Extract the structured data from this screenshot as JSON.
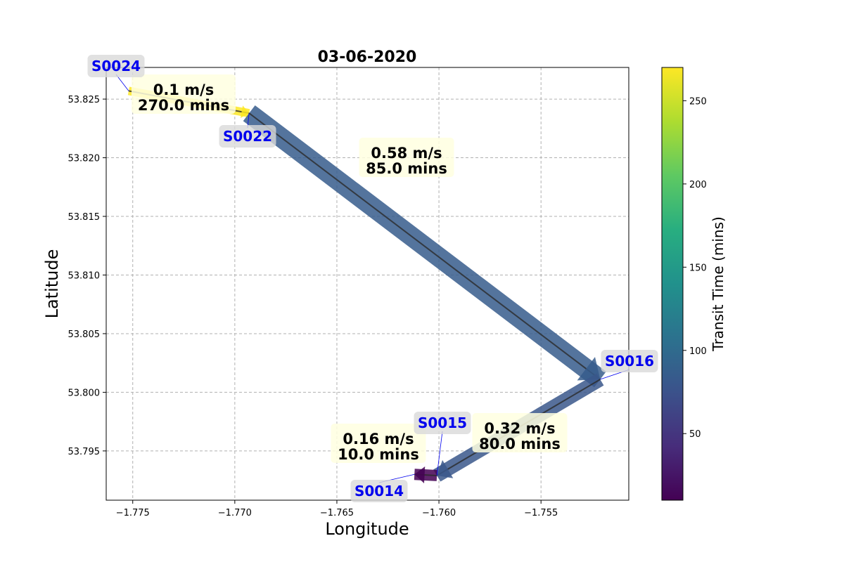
{
  "chart_data": {
    "type": "line",
    "title": "03-06-2020",
    "xlabel": "Longitude",
    "ylabel": "Latitude",
    "xlim": [
      -1.7763,
      -1.7507
    ],
    "ylim": [
      53.7908,
      53.8277
    ],
    "xticks": [
      -1.775,
      -1.77,
      -1.765,
      -1.76,
      -1.755
    ],
    "xtick_labels": [
      "−1.775",
      "−1.770",
      "−1.765",
      "−1.760",
      "−1.755"
    ],
    "yticks": [
      53.795,
      53.8,
      53.805,
      53.81,
      53.815,
      53.82,
      53.825
    ],
    "ytick_labels": [
      "53.795",
      "53.800",
      "53.805",
      "53.810",
      "53.815",
      "53.820",
      "53.825"
    ],
    "grid": true,
    "stations": [
      {
        "name": "S0024",
        "lon": -1.7752,
        "lat": 53.8257
      },
      {
        "name": "S0022",
        "lon": -1.7693,
        "lat": 53.8238
      },
      {
        "name": "S0016",
        "lon": -1.7521,
        "lat": 53.8011
      },
      {
        "name": "S0015",
        "lon": -1.7601,
        "lat": 53.7929
      },
      {
        "name": "S0014",
        "lon": -1.7612,
        "lat": 53.793
      }
    ],
    "segments": [
      {
        "from": "S0024",
        "to": "S0022",
        "speed": "0.1 m/s",
        "time": "270.0 mins",
        "transit_time": 270
      },
      {
        "from": "S0022",
        "to": "S0016",
        "speed": "0.58 m/s",
        "time": "85.0 mins",
        "transit_time": 85
      },
      {
        "from": "S0016",
        "to": "S0015",
        "speed": "0.32 m/s",
        "time": "80.0 mins",
        "transit_time": 80
      },
      {
        "from": "S0015",
        "to": "S0014",
        "speed": "0.16 m/s",
        "time": "10.0 mins",
        "transit_time": 10
      }
    ],
    "colorbar": {
      "label": "Transit Time (mins)",
      "colormap": "viridis",
      "range": [
        10,
        270
      ],
      "ticks": [
        50,
        100,
        150,
        200,
        250
      ],
      "tick_labels": [
        "50",
        "100",
        "150",
        "200",
        "250"
      ]
    }
  }
}
